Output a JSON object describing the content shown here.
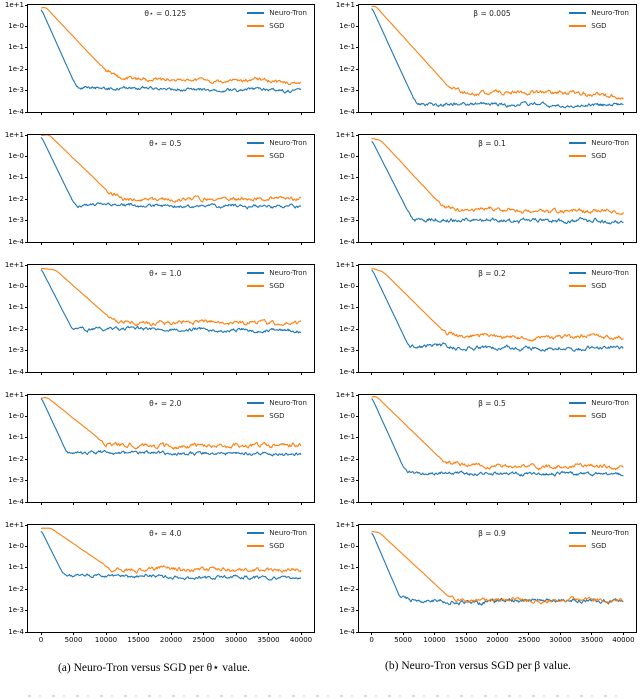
{
  "page": {
    "background": "#ffffff"
  },
  "captions": {
    "a": "(a) Neuro-Tron versus SGD per θ⋆ value.",
    "b": "(b) Neuro-Tron versus SGD per β value."
  },
  "colors": {
    "neuro_tron": "#1f77b4",
    "sgd": "#ff7f0e",
    "axis": "#000000"
  },
  "legend": {
    "entries": [
      {
        "label": "Neuro-Tron",
        "color_key": "neuro_tron"
      },
      {
        "label": "SGD",
        "color_key": "sgd"
      }
    ]
  },
  "axes": {
    "y_tick_labels": [
      "1e+1",
      "1e-0",
      "1e-1",
      "1e-2",
      "1e-3",
      "1e-4"
    ],
    "y_tick_exps": [
      1,
      0,
      -1,
      -2,
      -3,
      -4
    ],
    "x_ticks": [
      0,
      5000,
      10000,
      15000,
      20000,
      25000,
      30000,
      35000,
      40000
    ],
    "x_tick_labels": [
      "0",
      "5000",
      "10000",
      "15000",
      "20000",
      "25000",
      "30000",
      "35000",
      "40000"
    ],
    "xlim": [
      -2000,
      42000
    ],
    "ylim_exp": [
      -4,
      1
    ],
    "yscale": "log",
    "grid": false,
    "legend_position": "upper right"
  },
  "chart_data": [
    {
      "id": "a1",
      "panel": "a",
      "row": 0,
      "type": "line",
      "annotation": "θ⋆ = 0.125",
      "series": [
        {
          "name": "Neuro-Tron",
          "color_key": "neuro_tron",
          "noise": 0.06,
          "noise_from_x": 4500,
          "keypoints": [
            [
              0,
              7
            ],
            [
              5500,
              0.0013
            ],
            [
              40000,
              0.001
            ]
          ]
        },
        {
          "name": "SGD",
          "color_key": "sgd",
          "noise": 0.07,
          "noise_from_x": 9000,
          "keypoints": [
            [
              0,
              7
            ],
            [
              700,
              8
            ],
            [
              10000,
              0.008
            ],
            [
              13000,
              0.003
            ],
            [
              40000,
              0.0028
            ]
          ]
        }
      ]
    },
    {
      "id": "a2",
      "panel": "a",
      "row": 1,
      "type": "line",
      "annotation": "θ⋆ = 0.5",
      "series": [
        {
          "name": "Neuro-Tron",
          "color_key": "neuro_tron",
          "noise": 0.06,
          "noise_from_x": 4200,
          "keypoints": [
            [
              0,
              9
            ],
            [
              5200,
              0.005
            ],
            [
              40000,
              0.0045
            ]
          ]
        },
        {
          "name": "SGD",
          "color_key": "sgd",
          "noise": 0.07,
          "noise_from_x": 9500,
          "keypoints": [
            [
              0,
              9.5
            ],
            [
              1200,
              10.5
            ],
            [
              10500,
              0.02
            ],
            [
              13000,
              0.0095
            ],
            [
              40000,
              0.0105
            ]
          ]
        }
      ]
    },
    {
      "id": "a3",
      "panel": "a",
      "row": 2,
      "type": "line",
      "annotation": "θ⋆ = 1.0",
      "series": [
        {
          "name": "Neuro-Tron",
          "color_key": "neuro_tron",
          "noise": 0.06,
          "noise_from_x": 3800,
          "keypoints": [
            [
              0,
              7
            ],
            [
              4800,
              0.01
            ],
            [
              40000,
              0.0085
            ]
          ]
        },
        {
          "name": "SGD",
          "color_key": "sgd",
          "noise": 0.07,
          "noise_from_x": 9500,
          "keypoints": [
            [
              0,
              7
            ],
            [
              2200,
              6
            ],
            [
              10500,
              0.035
            ],
            [
              12500,
              0.022
            ],
            [
              40000,
              0.02
            ]
          ]
        }
      ]
    },
    {
      "id": "a4",
      "panel": "a",
      "row": 3,
      "type": "line",
      "annotation": "θ⋆ = 2.0",
      "series": [
        {
          "name": "Neuro-Tron",
          "color_key": "neuro_tron",
          "noise": 0.06,
          "noise_from_x": 3200,
          "keypoints": [
            [
              0,
              8
            ],
            [
              4000,
              0.02
            ],
            [
              40000,
              0.018
            ]
          ]
        },
        {
          "name": "SGD",
          "color_key": "sgd",
          "noise": 0.08,
          "noise_from_x": 8500,
          "keypoints": [
            [
              0,
              7
            ],
            [
              900,
              8
            ],
            [
              9500,
              0.065
            ],
            [
              11500,
              0.042
            ],
            [
              40000,
              0.045
            ]
          ]
        }
      ]
    },
    {
      "id": "a5",
      "panel": "a",
      "row": 4,
      "type": "line",
      "annotation": "θ⋆ = 4.0",
      "series": [
        {
          "name": "Neuro-Tron",
          "color_key": "neuro_tron",
          "noise": 0.06,
          "noise_from_x": 2800,
          "keypoints": [
            [
              0,
              6
            ],
            [
              3500,
              0.042
            ],
            [
              40000,
              0.034
            ]
          ]
        },
        {
          "name": "SGD",
          "color_key": "sgd",
          "noise": 0.07,
          "noise_from_x": 9500,
          "keypoints": [
            [
              0,
              7
            ],
            [
              1500,
              7
            ],
            [
              10500,
              0.1
            ],
            [
              12500,
              0.085
            ],
            [
              40000,
              0.08
            ]
          ]
        }
      ]
    },
    {
      "id": "b1",
      "panel": "b",
      "row": 0,
      "type": "line",
      "annotation": "β = 0.005",
      "series": [
        {
          "name": "Neuro-Tron",
          "color_key": "neuro_tron",
          "noise": 0.06,
          "noise_from_x": 5800,
          "keypoints": [
            [
              0,
              8
            ],
            [
              7000,
              0.00026
            ],
            [
              40000,
              0.0002
            ]
          ]
        },
        {
          "name": "SGD",
          "color_key": "sgd",
          "noise": 0.07,
          "noise_from_x": 11500,
          "keypoints": [
            [
              0,
              8.5
            ],
            [
              600,
              9
            ],
            [
              12000,
              0.0018
            ],
            [
              15500,
              0.00078
            ],
            [
              35000,
              0.0007
            ],
            [
              40000,
              0.00048
            ]
          ]
        }
      ]
    },
    {
      "id": "b2",
      "panel": "b",
      "row": 1,
      "type": "line",
      "annotation": "β = 0.1",
      "series": [
        {
          "name": "Neuro-Tron",
          "color_key": "neuro_tron",
          "noise": 0.07,
          "noise_from_x": 5300,
          "keypoints": [
            [
              0,
              6
            ],
            [
              6500,
              0.001
            ],
            [
              40000,
              0.001
            ]
          ]
        },
        {
          "name": "SGD",
          "color_key": "sgd",
          "noise": 0.07,
          "noise_from_x": 10000,
          "keypoints": [
            [
              0,
              7
            ],
            [
              1500,
              5.5
            ],
            [
              11000,
              0.0055
            ],
            [
              13500,
              0.003
            ],
            [
              40000,
              0.0028
            ]
          ]
        }
      ]
    },
    {
      "id": "b3",
      "panel": "b",
      "row": 2,
      "type": "line",
      "annotation": "β = 0.2",
      "series": [
        {
          "name": "Neuro-Tron",
          "color_key": "neuro_tron",
          "noise": 0.07,
          "noise_from_x": 5000,
          "keypoints": [
            [
              0,
              7
            ],
            [
              6000,
              0.0014
            ],
            [
              40000,
              0.0013
            ]
          ]
        },
        {
          "name": "SGD",
          "color_key": "sgd",
          "noise": 0.07,
          "noise_from_x": 10500,
          "keypoints": [
            [
              0,
              7
            ],
            [
              1800,
              5
            ],
            [
              11500,
              0.0075
            ],
            [
              14000,
              0.0045
            ],
            [
              40000,
              0.004
            ]
          ]
        }
      ]
    },
    {
      "id": "b4",
      "panel": "b",
      "row": 3,
      "type": "line",
      "annotation": "β = 0.5",
      "series": [
        {
          "name": "Neuro-Tron",
          "color_key": "neuro_tron",
          "noise": 0.06,
          "noise_from_x": 4500,
          "keypoints": [
            [
              0,
              8
            ],
            [
              5500,
              0.0022
            ],
            [
              40000,
              0.002
            ]
          ]
        },
        {
          "name": "SGD",
          "color_key": "sgd",
          "noise": 0.07,
          "noise_from_x": 10500,
          "keypoints": [
            [
              0,
              8
            ],
            [
              700,
              9
            ],
            [
              11500,
              0.0075
            ],
            [
              13500,
              0.005
            ],
            [
              40000,
              0.005
            ]
          ]
        }
      ]
    },
    {
      "id": "b5",
      "panel": "b",
      "row": 4,
      "type": "line",
      "annotation": "β = 0.9",
      "series": [
        {
          "name": "Neuro-Tron",
          "color_key": "neuro_tron",
          "noise": 0.07,
          "noise_from_x": 3800,
          "keypoints": [
            [
              0,
              5
            ],
            [
              4500,
              0.0042
            ],
            [
              7000,
              0.0028
            ],
            [
              40000,
              0.003
            ]
          ]
        },
        {
          "name": "SGD",
          "color_key": "sgd",
          "noise": 0.06,
          "noise_from_x": 11500,
          "keypoints": [
            [
              0,
              5
            ],
            [
              1200,
              4.5
            ],
            [
              12500,
              0.0038
            ],
            [
              14500,
              0.003
            ],
            [
              40000,
              0.003
            ]
          ]
        }
      ]
    }
  ]
}
